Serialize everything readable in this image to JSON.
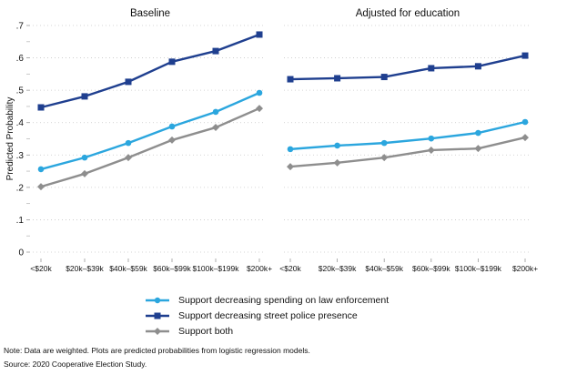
{
  "chart_data": [
    {
      "type": "line",
      "title": "Baseline",
      "xlabel": "",
      "ylabel": "Predicted Probability",
      "ylim": [
        0,
        0.7
      ],
      "yticks": [
        0,
        0.1,
        0.2,
        0.3,
        0.4,
        0.5,
        0.6,
        0.7
      ],
      "ytick_labels": [
        "0",
        ".1",
        ".2",
        ".3",
        ".4",
        ".5",
        ".6",
        ".7"
      ],
      "grid": true,
      "categories": [
        "<$20k",
        "$20k–$39k",
        "$40k–$59k",
        "$60k–$99k",
        "$100k–$199k",
        "$200k+"
      ],
      "series": [
        {
          "name": "Support decreasing spending on law enforcement",
          "color": "#2ba6de",
          "marker": "circle",
          "values": [
            0.256,
            0.292,
            0.337,
            0.388,
            0.433,
            0.492
          ]
        },
        {
          "name": "Support decreasing street police presence",
          "color": "#1f3f8f",
          "marker": "square",
          "values": [
            0.447,
            0.481,
            0.526,
            0.588,
            0.621,
            0.672
          ]
        },
        {
          "name": "Support both",
          "color": "#8e8e8e",
          "marker": "diamond",
          "values": [
            0.202,
            0.242,
            0.292,
            0.346,
            0.385,
            0.444
          ]
        }
      ]
    },
    {
      "type": "line",
      "title": "Adjusted for education",
      "xlabel": "",
      "ylabel": "",
      "ylim": [
        0,
        0.7
      ],
      "grid": true,
      "categories": [
        "<$20k",
        "$20k–$39k",
        "$40k–$59k",
        "$60k–$99k",
        "$100k–$199k",
        "$200k+"
      ],
      "series": [
        {
          "name": "Support decreasing spending on law enforcement",
          "color": "#2ba6de",
          "marker": "circle",
          "values": [
            0.318,
            0.329,
            0.337,
            0.351,
            0.368,
            0.402
          ]
        },
        {
          "name": "Support decreasing street police presence",
          "color": "#1f3f8f",
          "marker": "square",
          "values": [
            0.534,
            0.537,
            0.541,
            0.568,
            0.574,
            0.607
          ]
        },
        {
          "name": "Support both",
          "color": "#8e8e8e",
          "marker": "diamond",
          "values": [
            0.264,
            0.276,
            0.292,
            0.315,
            0.32,
            0.354
          ]
        }
      ]
    }
  ],
  "legend": {
    "placement": "bottom-center",
    "items": [
      {
        "label": "Support decreasing spending on law enforcement",
        "color": "#2ba6de",
        "marker": "circle"
      },
      {
        "label": "Support decreasing street police presence",
        "color": "#1f3f8f",
        "marker": "square"
      },
      {
        "label": "Support both",
        "color": "#8e8e8e",
        "marker": "diamond"
      }
    ]
  },
  "notes": {
    "note": "Note: Data are weighted. Plots are predicted probabilities from logistic regression models.",
    "source": "Source: 2020 Cooperative Election Study."
  }
}
